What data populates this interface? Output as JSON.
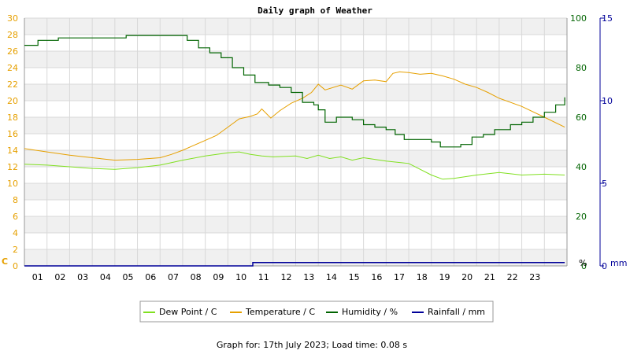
{
  "chart_data": {
    "type": "line",
    "title": "Daily graph of Weather",
    "x_ticks": [
      "01",
      "02",
      "03",
      "04",
      "05",
      "06",
      "07",
      "08",
      "09",
      "10",
      "11",
      "12",
      "13",
      "14",
      "15",
      "16",
      "17",
      "18",
      "19",
      "20",
      "21",
      "22",
      "23"
    ],
    "xlim": [
      0,
      24
    ],
    "axes": {
      "left": {
        "unit": "C",
        "ylim": [
          0,
          30
        ],
        "ticks": [
          0,
          2,
          4,
          6,
          8,
          10,
          12,
          14,
          16,
          18,
          20,
          22,
          24,
          26,
          28,
          30
        ],
        "color": "#e6a000"
      },
      "right1": {
        "unit": "%",
        "ylim": [
          0,
          100
        ],
        "ticks": [
          0,
          20,
          40,
          60,
          80,
          100
        ],
        "color": "#006400"
      },
      "right2": {
        "unit": "mm",
        "ylim": [
          0,
          15
        ],
        "ticks": [
          0,
          5,
          10,
          15
        ],
        "color": "#000099"
      }
    },
    "grid": true,
    "legend_position": "bottom",
    "series": [
      {
        "name": "Dew Point / C",
        "axis": "left",
        "color": "#80e020",
        "x": [
          0,
          1,
          2,
          3,
          4,
          5,
          6,
          7,
          8,
          9,
          9.5,
          10,
          10.5,
          11,
          12,
          12.5,
          13,
          13.5,
          14,
          14.5,
          15,
          15.5,
          16,
          17,
          18,
          18.5,
          19,
          19.5,
          20,
          21,
          22,
          23,
          23.9
        ],
        "values": [
          12.3,
          12.2,
          12.0,
          11.8,
          11.7,
          11.9,
          12.2,
          12.8,
          13.3,
          13.7,
          13.8,
          13.5,
          13.3,
          13.2,
          13.3,
          13.0,
          13.4,
          13.0,
          13.2,
          12.8,
          13.1,
          12.9,
          12.7,
          12.4,
          11.0,
          10.5,
          10.6,
          10.8,
          11.0,
          11.3,
          11.0,
          11.1,
          11.0
        ]
      },
      {
        "name": "Temperature / C",
        "axis": "left",
        "color": "#e6a000",
        "x": [
          0,
          1,
          2,
          3,
          4,
          5,
          6,
          6.5,
          7,
          7.5,
          8,
          8.5,
          9,
          9.5,
          10,
          10.3,
          10.5,
          10.9,
          11.3,
          11.8,
          12.3,
          12.7,
          13.0,
          13.3,
          14,
          14.5,
          15,
          15.5,
          16,
          16.3,
          16.6,
          17,
          17.5,
          18,
          18.5,
          19,
          19.5,
          20,
          20.5,
          21,
          22,
          23,
          23.9
        ],
        "values": [
          14.2,
          13.8,
          13.4,
          13.1,
          12.8,
          12.9,
          13.1,
          13.5,
          14.0,
          14.6,
          15.2,
          15.8,
          16.8,
          17.8,
          18.1,
          18.4,
          19.0,
          17.9,
          18.8,
          19.7,
          20.3,
          21.0,
          22.0,
          21.3,
          21.9,
          21.4,
          22.4,
          22.5,
          22.3,
          23.3,
          23.5,
          23.4,
          23.2,
          23.3,
          23.0,
          22.6,
          22.0,
          21.6,
          21.0,
          20.3,
          19.3,
          18.0,
          16.8
        ]
      },
      {
        "name": "Humidity / %",
        "axis": "right1",
        "color": "#006400",
        "x": [
          0,
          0.6,
          1.5,
          2.5,
          3.5,
          4.5,
          5.5,
          6.5,
          7.2,
          7.7,
          8.2,
          8.7,
          9.2,
          9.7,
          10.2,
          10.8,
          11.3,
          11.8,
          12.3,
          12.8,
          13.0,
          13.3,
          13.8,
          14.5,
          15.0,
          15.5,
          16.0,
          16.4,
          16.8,
          17.5,
          18.0,
          18.4,
          18.8,
          19.3,
          19.8,
          20.3,
          20.8,
          21.5,
          22.0,
          22.5,
          23.0,
          23.5,
          23.9
        ],
        "values": [
          89,
          91,
          92,
          92,
          92,
          93,
          93,
          93,
          91,
          88,
          86,
          84,
          80,
          77,
          74,
          73,
          72,
          70,
          66,
          65,
          63,
          58,
          60,
          59,
          57,
          56,
          55,
          53,
          51,
          51,
          50,
          48,
          48,
          49,
          52,
          53,
          55,
          57,
          58,
          60,
          62,
          65,
          68
        ]
      },
      {
        "name": "Rainfall / mm",
        "axis": "right2",
        "color": "#000099",
        "x": [
          0,
          10.1,
          10.1,
          23.9
        ],
        "values": [
          0,
          0,
          0.2,
          0.2
        ]
      }
    ],
    "footer": "Graph for: 17th July 2023; Load time: 0.08 s"
  }
}
